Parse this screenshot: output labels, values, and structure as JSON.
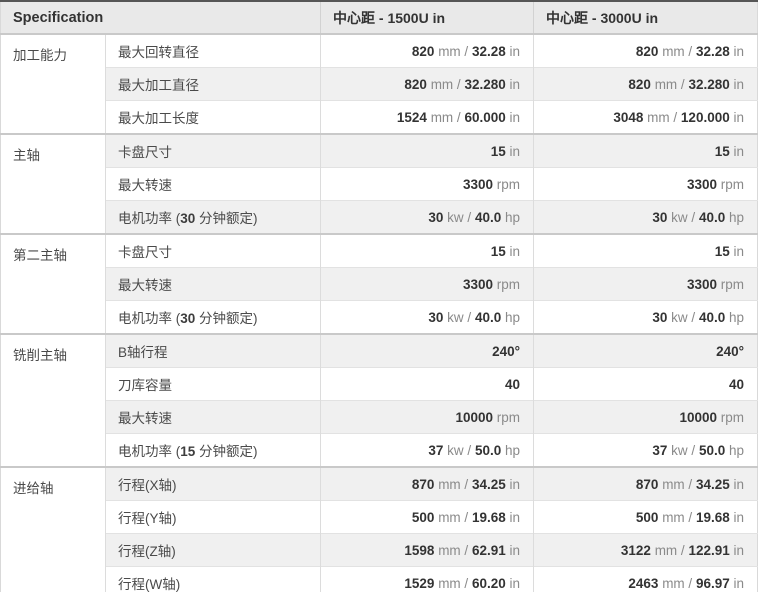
{
  "table": {
    "header": [
      "Specification",
      "中心距 - 1500U in",
      "中心距 - 3000U in"
    ],
    "columns": [
      "group",
      "spec",
      "1500U",
      "3000U"
    ],
    "groups": [
      {
        "name": "加工能力",
        "rows": [
          {
            "label": "最大回转直径",
            "values": [
              "820 mm / 32.28 in",
              "820 mm / 32.28 in"
            ]
          },
          {
            "label": "最大加工直径",
            "values": [
              "820 mm / 32.280 in",
              "820 mm / 32.280 in"
            ]
          },
          {
            "label": "最大加工长度",
            "values": [
              "1524 mm / 60.000 in",
              "3048 mm / 120.000 in"
            ]
          }
        ]
      },
      {
        "name": "主轴",
        "rows": [
          {
            "label": "卡盘尺寸",
            "values": [
              "15 in",
              "15 in"
            ]
          },
          {
            "label": "最大转速",
            "values": [
              "3300 rpm",
              "3300 rpm"
            ]
          },
          {
            "label": "电机功率 (30 分钟额定)",
            "values": [
              "30 kw / 40.0 hp",
              "30 kw / 40.0 hp"
            ]
          }
        ]
      },
      {
        "name": "第二主轴",
        "rows": [
          {
            "label": "卡盘尺寸",
            "values": [
              "15 in",
              "15 in"
            ]
          },
          {
            "label": "最大转速",
            "values": [
              "3300 rpm",
              "3300 rpm"
            ]
          },
          {
            "label": "电机功率 (30 分钟额定)",
            "values": [
              "30 kw / 40.0 hp",
              "30 kw / 40.0 hp"
            ]
          }
        ]
      },
      {
        "name": "铣削主轴",
        "rows": [
          {
            "label": "B轴行程",
            "values": [
              "240°",
              "240°"
            ]
          },
          {
            "label": "刀库容量",
            "values": [
              "40",
              "40"
            ]
          },
          {
            "label": "最大转速",
            "values": [
              "10000 rpm",
              "10000 rpm"
            ]
          },
          {
            "label": "电机功率 (15 分钟额定)",
            "values": [
              "37 kw / 50.0 hp",
              "37 kw / 50.0 hp"
            ]
          }
        ]
      },
      {
        "name": "进给轴",
        "rows": [
          {
            "label": "行程(X轴)",
            "values": [
              "870 mm / 34.25 in",
              "870 mm / 34.25 in"
            ]
          },
          {
            "label": "行程(Y轴)",
            "values": [
              "500 mm / 19.68 in",
              "500 mm / 19.68 in"
            ]
          },
          {
            "label": "行程(Z轴)",
            "values": [
              "1598 mm / 62.91 in",
              "3122 mm / 122.91 in"
            ]
          },
          {
            "label": "行程(W轴)",
            "values": [
              "1529 mm / 60.20 in",
              "2463 mm / 96.97 in"
            ]
          }
        ]
      }
    ],
    "colors": {
      "top_border": "#565656",
      "header_bg": "#e9e9e9",
      "header_text": "#333333",
      "row_alt_bg": "#f0f0f0",
      "grid_line": "#dcdcdc",
      "group_separator": "#c9c9c9",
      "number_text": "#333333",
      "unit_text": "#8a8a8a",
      "label_text": "#4a4a4a"
    }
  }
}
